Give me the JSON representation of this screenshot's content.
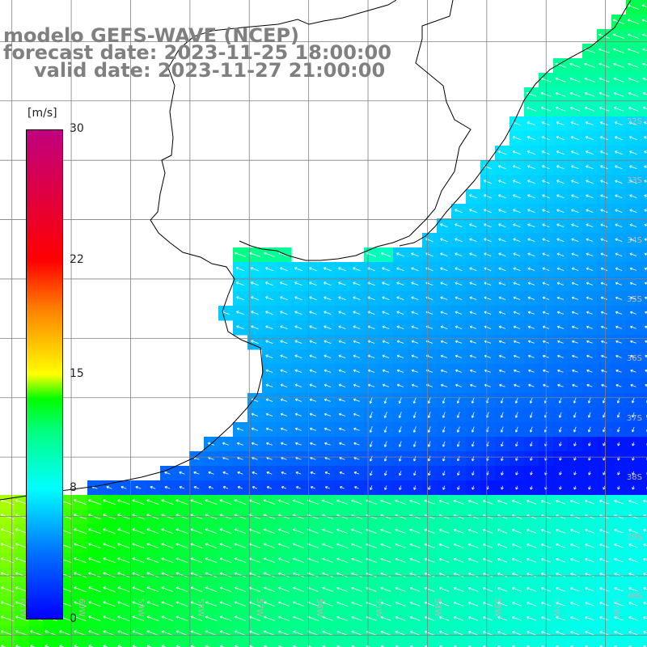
{
  "title": {
    "line1": "modelo GEFS-WAVE (NCEP)",
    "line2": "forecast date: 2023-11-25 18:00:00",
    "line3": "valid date: 2023-11-27 21:00:00"
  },
  "legend": {
    "unit": "[m/s]",
    "min": 0,
    "max": 30,
    "ticks": [
      {
        "label": "30",
        "value": 30
      },
      {
        "label": "22",
        "value": 22
      },
      {
        "label": "15",
        "value": 15
      },
      {
        "label": "8",
        "value": 8
      },
      {
        "label": "0",
        "value": 0
      }
    ],
    "gradient": [
      {
        "value": 0,
        "color": "#0000ff"
      },
      {
        "value": 4,
        "color": "#0070ff"
      },
      {
        "value": 8,
        "color": "#00ffff"
      },
      {
        "value": 11.5,
        "color": "#00ff80"
      },
      {
        "value": 13.5,
        "color": "#00ff00"
      },
      {
        "value": 15,
        "color": "#ffff00"
      },
      {
        "value": 19,
        "color": "#ff8000"
      },
      {
        "value": 22,
        "color": "#ff0000"
      },
      {
        "value": 30,
        "color": "#c0007f"
      }
    ]
  },
  "latitude_labels": [
    "32S",
    "33S",
    "34S",
    "35S",
    "36S",
    "37S",
    "38S",
    "39S",
    "40S",
    "41S"
  ],
  "longitude_labels": [
    "61W",
    "60W",
    "59W",
    "58W",
    "57W",
    "56W",
    "55W",
    "54W",
    "53W",
    "52W",
    "51W"
  ],
  "map": {
    "lon_range": [
      -61.2,
      -50.3
    ],
    "lat_range": [
      -41.2,
      -30.3
    ],
    "grid_step_deg": 1,
    "wind_dominant_direction": "from east-northeast",
    "land_color": "#ffffff",
    "coast_color": "#000000",
    "grid_color": "#808080"
  }
}
